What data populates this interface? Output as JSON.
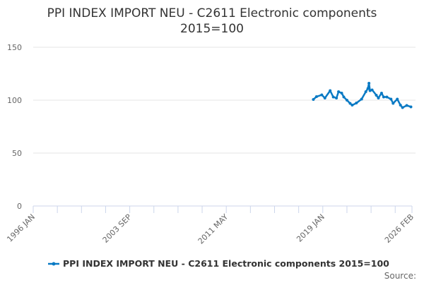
{
  "chart_data": {
    "type": "line",
    "title_line1": "PPI INDEX IMPORT NEU - C2611 Electronic components",
    "title_line2": "2015=100",
    "xlabel": "",
    "ylabel": "",
    "ylim": [
      0,
      150
    ],
    "yticks": [
      "0",
      "50",
      "100",
      "150"
    ],
    "ytick_values": [
      0,
      50,
      100,
      150
    ],
    "xlim": [
      "1996-01",
      "2026-02"
    ],
    "xtick_labels": [
      "1996 JAN",
      "2003 SEP",
      "2011 MAY",
      "2019 JAN",
      "2026 FEB"
    ],
    "grid": true,
    "legend_position": "bottom",
    "color": "#0a7ac4",
    "series": [
      {
        "name": "PPI INDEX IMPORT NEU - C2611 Electronic components 2015=100",
        "x": [
          "2018-04",
          "2018-07",
          "2018-12",
          "2019-03",
          "2019-08",
          "2019-11",
          "2020-02",
          "2020-04",
          "2020-07",
          "2020-09",
          "2020-12",
          "2021-03",
          "2021-05",
          "2021-09",
          "2022-02",
          "2022-06",
          "2022-08",
          "2022-09",
          "2022-10",
          "2022-12",
          "2023-04",
          "2023-06",
          "2023-09",
          "2023-11",
          "2024-02",
          "2024-06",
          "2024-08",
          "2024-12",
          "2025-03",
          "2025-05",
          "2025-09",
          "2026-01"
        ],
        "values": [
          100.7,
          103.3,
          105,
          102,
          109,
          103,
          102,
          108,
          106.7,
          103,
          100,
          97,
          95.3,
          97.3,
          101,
          108,
          111,
          116,
          109,
          109.7,
          104.7,
          102,
          106.7,
          103,
          103,
          101,
          97,
          101,
          95.3,
          93,
          95,
          93.7
        ]
      }
    ],
    "source_label": "Source:"
  }
}
